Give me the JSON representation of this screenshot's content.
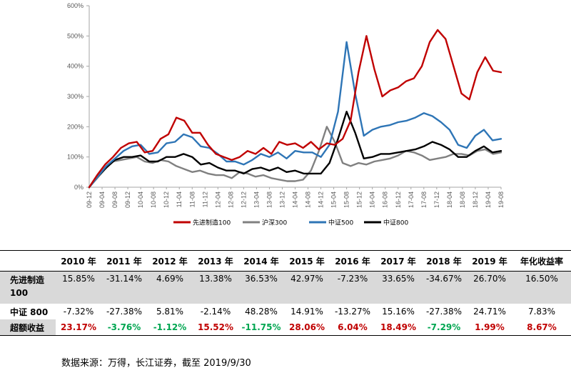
{
  "chart_data": {
    "type": "line",
    "y_ticks": [
      "0%",
      "100%",
      "200%",
      "300%",
      "400%",
      "500%",
      "600%"
    ],
    "ylim": [
      0,
      600
    ],
    "x_ticks": [
      "09-12",
      "09-04",
      "09-08",
      "09-12",
      "10-04",
      "10-08",
      "10-12",
      "11-04",
      "11-08",
      "11-12",
      "12-04",
      "12-08",
      "12-12",
      "13-04",
      "13-08",
      "13-12",
      "14-04",
      "14-08",
      "14-12",
      "15-04",
      "15-08",
      "15-12",
      "16-04",
      "16-08",
      "16-12",
      "17-04",
      "17-08",
      "17-12",
      "18-04",
      "18-08",
      "18-12",
      "19-04",
      "19-08"
    ],
    "legend_position": "bottom",
    "series": [
      {
        "name": "先进制造100",
        "color": "#c00000",
        "values": [
          0,
          40,
          75,
          100,
          130,
          145,
          150,
          115,
          120,
          160,
          175,
          230,
          220,
          180,
          180,
          140,
          110,
          100,
          90,
          100,
          120,
          110,
          130,
          110,
          150,
          140,
          145,
          130,
          150,
          125,
          145,
          140,
          160,
          220,
          380,
          500,
          390,
          300,
          320,
          330,
          350,
          360,
          400,
          480,
          520,
          490,
          400,
          310,
          290,
          380,
          430,
          385,
          380
        ]
      },
      {
        "name": "沪深300",
        "color": "#808080",
        "values": [
          0,
          30,
          60,
          85,
          90,
          95,
          100,
          85,
          80,
          90,
          85,
          70,
          60,
          50,
          55,
          45,
          40,
          40,
          30,
          50,
          45,
          35,
          40,
          30,
          25,
          20,
          20,
          25,
          55,
          120,
          200,
          150,
          80,
          70,
          80,
          75,
          85,
          90,
          95,
          105,
          120,
          115,
          105,
          90,
          95,
          100,
          110,
          110,
          105,
          120,
          125,
          110,
          115
        ]
      },
      {
        "name": "中证500",
        "color": "#2e75b6",
        "values": [
          0,
          35,
          70,
          95,
          120,
          135,
          140,
          110,
          115,
          145,
          150,
          175,
          165,
          135,
          130,
          110,
          85,
          85,
          75,
          90,
          110,
          100,
          115,
          95,
          120,
          115,
          115,
          100,
          140,
          250,
          480,
          310,
          170,
          190,
          200,
          205,
          215,
          220,
          230,
          245,
          235,
          215,
          190,
          140,
          130,
          170,
          190,
          155,
          160
        ]
      },
      {
        "name": "中证800",
        "color": "#000000",
        "values": [
          0,
          35,
          65,
          90,
          100,
          100,
          105,
          85,
          85,
          100,
          100,
          110,
          100,
          75,
          80,
          65,
          55,
          55,
          45,
          60,
          65,
          55,
          65,
          50,
          55,
          45,
          45,
          45,
          80,
          160,
          250,
          180,
          95,
          100,
          110,
          110,
          115,
          120,
          125,
          135,
          150,
          140,
          125,
          100,
          100,
          120,
          135,
          115,
          120
        ]
      }
    ]
  },
  "table": {
    "headers": [
      "",
      "2010 年",
      "2011 年",
      "2012 年",
      "2013 年",
      "2014 年",
      "2015 年",
      "2016 年",
      "2017 年",
      "2018 年",
      "2019 年",
      "年化收益率"
    ],
    "rows": [
      {
        "label": "先进制造100",
        "values": [
          "15.85%",
          "-31.14%",
          "4.69%",
          "13.38%",
          "36.53%",
          "42.97%",
          "-7.23%",
          "33.65%",
          "-34.67%",
          "26.70%",
          "16.50%"
        ]
      },
      {
        "label": "中证 800",
        "values": [
          "-7.32%",
          "-27.38%",
          "5.81%",
          "-2.14%",
          "48.28%",
          "14.91%",
          "-13.27%",
          "15.16%",
          "-27.38%",
          "24.71%",
          "7.83%"
        ]
      },
      {
        "label": "超额收益",
        "values": [
          "23.17%",
          "-3.76%",
          "-1.12%",
          "15.52%",
          "-11.75%",
          "28.06%",
          "6.04%",
          "18.49%",
          "-7.29%",
          "1.99%",
          "8.67%"
        ]
      }
    ]
  },
  "source_note": "数据来源：万得，长江证券，截至 2019/9/30",
  "colors": {
    "row_grey": "#d9d9d9",
    "positive": "#c00000",
    "negative": "#00a651"
  }
}
